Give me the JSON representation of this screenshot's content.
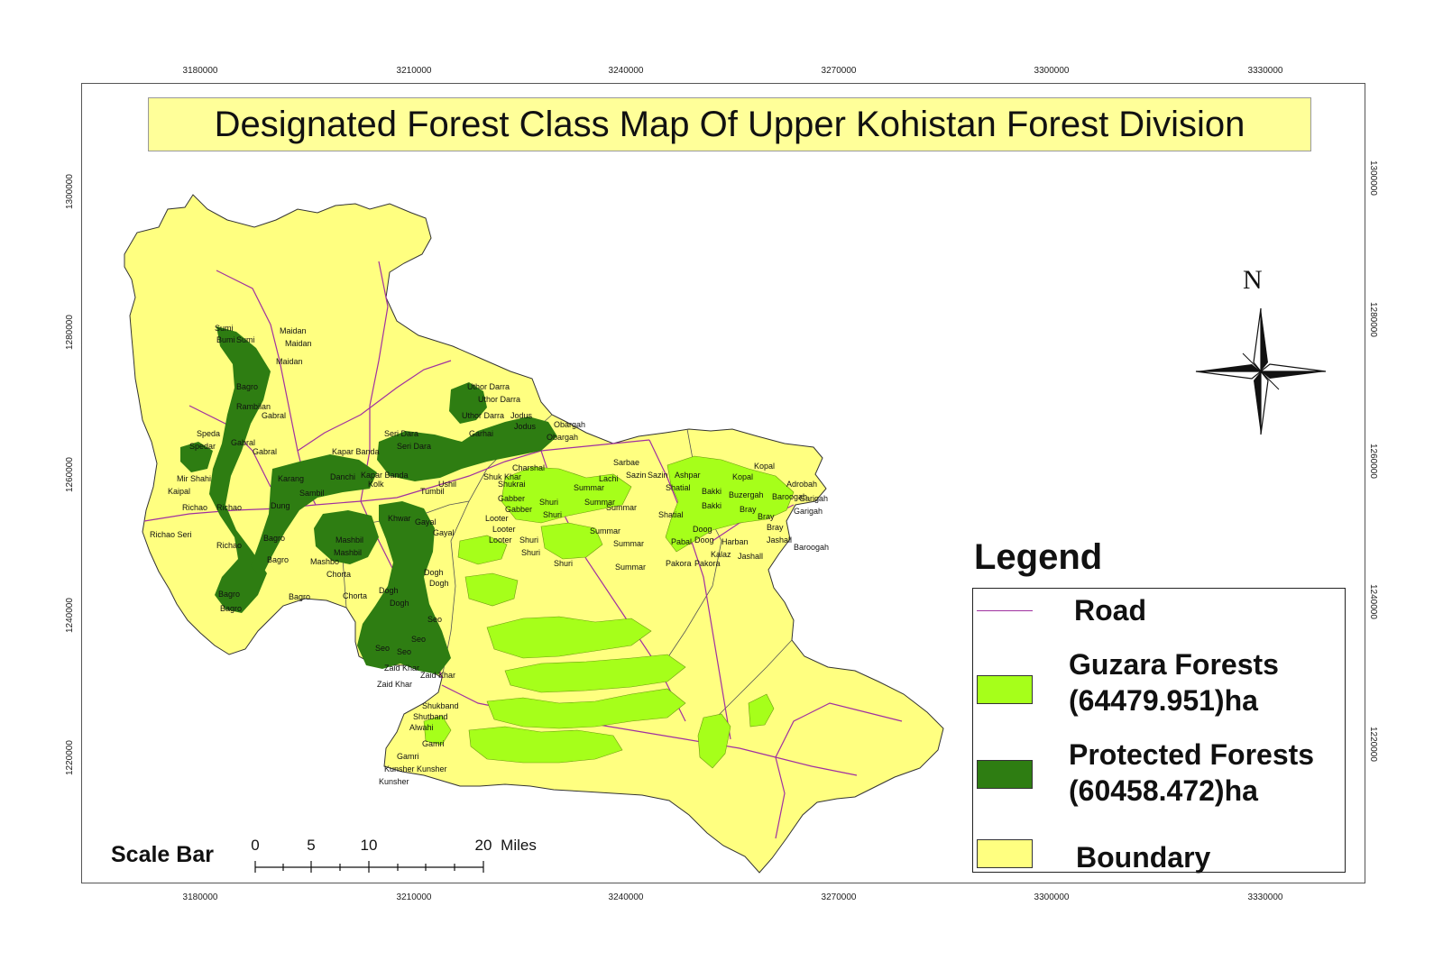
{
  "map": {
    "title": "Designated Forest Class Map Of Upper Kohistan Forest Division",
    "x_ticks": [
      "3180000",
      "3210000",
      "3240000",
      "3270000",
      "3300000",
      "3330000"
    ],
    "y_ticks": [
      "1300000",
      "1280000",
      "1260000",
      "1240000",
      "1220000"
    ],
    "north_label": "N"
  },
  "legend": {
    "title": "Legend",
    "road_label": "Road",
    "guzara_label": "Guzara Forests",
    "guzara_area": "(64479.951)ha",
    "protected_label": "Protected Forests",
    "protected_area": "(60458.472)ha",
    "boundary_label": "Boundary",
    "colors": {
      "road": "#a030a0",
      "guzara": "#a6ff1a",
      "protected": "#2e7d12",
      "boundary": "#ffff80"
    }
  },
  "scale_bar": {
    "label": "Scale Bar",
    "ticks": [
      "0",
      "5",
      "10",
      "20"
    ],
    "unit": "Miles"
  },
  "villages": {
    "protected": [
      "Sumi",
      "Bumi",
      "Sumi",
      "Maidan",
      "Maidan",
      "Maidan",
      "Rambilan",
      "Bagro",
      "Gabral",
      "Gabral",
      "Speda",
      "Spedar",
      "Gabral",
      "Mir Shahi",
      "Kaipal",
      "Richao",
      "Richao",
      "Richao Seri",
      "Richao",
      "Bagro",
      "Bagro",
      "Bagro",
      "Bagro",
      "Bagro",
      "Dung",
      "Sambil",
      "Kapar Banda",
      "Kapar Banda",
      "Karang",
      "Danchi",
      "Seri Dara",
      "Seri Dara",
      "Uthor Darra",
      "Uthor Darra",
      "Uthor Darra",
      "Jodus",
      "Jodus",
      "Garhai",
      "Obargah",
      "Obargah",
      "Charshal",
      "Shuk Khar",
      "Gayal",
      "Gayal",
      "Khwar",
      "Mashbil",
      "Mashbil",
      "Mashbo",
      "Chorta",
      "Chorta",
      "Dogh",
      "Dogh",
      "Dogh",
      "Dogh",
      "Seo",
      "Seo",
      "Seo",
      "Seo",
      "Zaid Khar",
      "Zaid Khar",
      "Zaid Khar",
      "Tumbil",
      "Ushil",
      "Kolk"
    ],
    "guzara": [
      "Shukrai",
      "Gabber",
      "Gabber",
      "Looter",
      "Looter",
      "Looter",
      "Shuri",
      "Shuri",
      "Shuri",
      "Shuri",
      "Shuri",
      "Summar",
      "Summar",
      "Summar",
      "Summar",
      "Summar",
      "Summar",
      "Lachi",
      "Sazin",
      "Sazin",
      "Sarbae",
      "Ashpar",
      "Shatial",
      "Shatial",
      "Bakki",
      "Bakki",
      "Kopal",
      "Kopal",
      "Buzergah",
      "Baroogah",
      "Baroogah",
      "Adrobah",
      "Garigah",
      "Garigah",
      "Bray",
      "Bray",
      "Bray",
      "Doog",
      "Doog",
      "Pakora",
      "Pakora",
      "Kalaz",
      "Jashall",
      "Jashall",
      "Harban",
      "Pabal",
      "Shukband",
      "Shutband",
      "Alwahi",
      "Gamri",
      "Gamri",
      "Kunsher",
      "Kunsher",
      "Kunsher"
    ]
  }
}
